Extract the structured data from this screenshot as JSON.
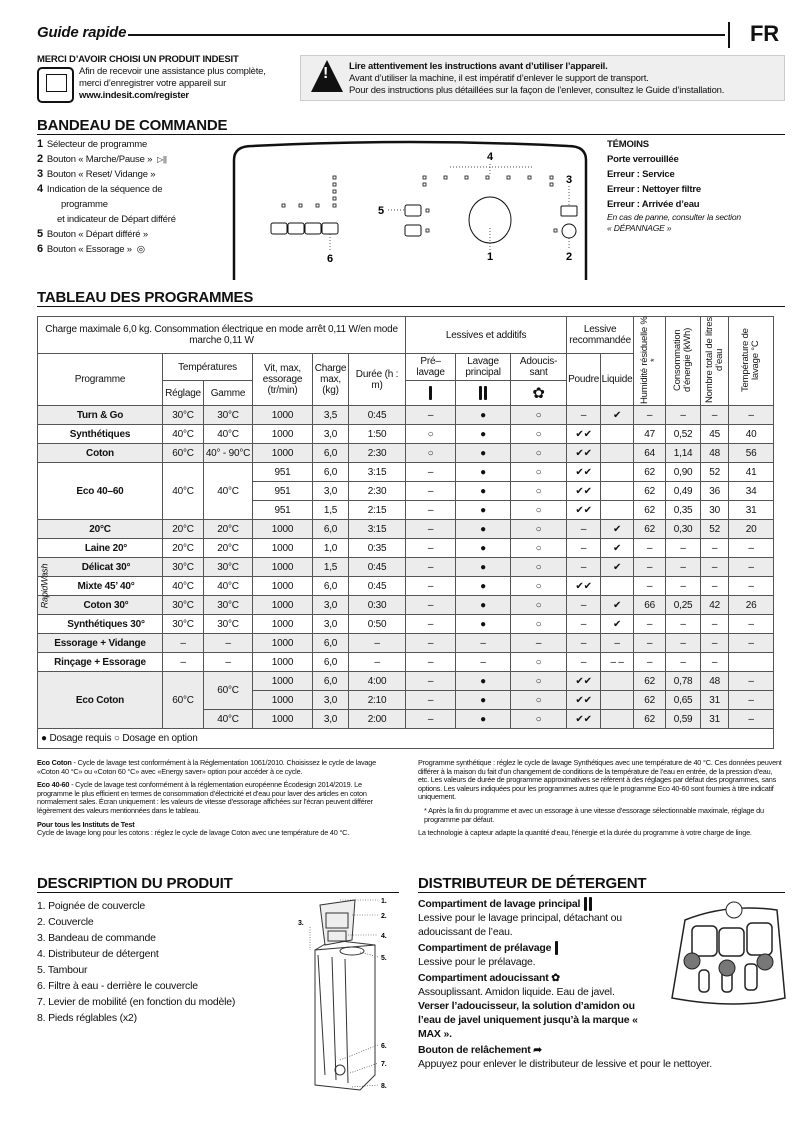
{
  "header": {
    "title": "Guide rapide",
    "lang": "FR"
  },
  "register": {
    "heading": "MERCI D’AVOIR CHOISI UN PRODUIT INDESIT",
    "line1": "Afin de recevoir une assistance plus complète,",
    "line2": "merci d’enregistrer votre appareil sur",
    "url": "www.indesit.com/register",
    "icon": "computer-icon"
  },
  "warning": {
    "bold": "Lire attentivement les instructions avant d’utiliser l’appareil.",
    "line1": "Avant d’utiliser la machine, il est impératif d’enlever le support de transport.",
    "line2": "Pour des instructions plus détaillées sur la façon de l’enlever, consultez le Guide d’installation.",
    "icon": "warning-icon"
  },
  "control": {
    "heading": "BANDEAU DE COMMANDE",
    "items": [
      {
        "n": "1",
        "label": "Sélecteur de programme"
      },
      {
        "n": "2",
        "label": "Bouton « Marche/Pause »",
        "icon": "play-pause-icon",
        "glyph": "▷||"
      },
      {
        "n": "3",
        "label": "Bouton « Reset/ Vidange »"
      },
      {
        "n": "4",
        "label": "Indication de la séquence de",
        "line2": "programme",
        "line3": "et indicateur de Départ différé"
      },
      {
        "n": "5",
        "label": "Bouton « Départ différé »"
      },
      {
        "n": "6",
        "label": "Bouton « Essorage »",
        "icon": "spin-icon",
        "glyph": "◎"
      }
    ],
    "panel_labels": {
      "l1": "1",
      "l2": "2",
      "l3": "3",
      "l4": "4",
      "l5": "5",
      "l6": "6"
    },
    "temoins": {
      "heading": "TÉMOINS",
      "items": [
        "Porte verrouillée",
        "Erreur : Service",
        "Erreur : Nettoyer filtre",
        "Erreur : Arrivée d’eau"
      ],
      "note1": "En cas de panne, consulter la section",
      "note2": "« DÉPANNAGE »"
    }
  },
  "programs": {
    "heading": "TABLEAU DES PROGRAMMES",
    "header": {
      "caption": "Charge maximale 6,0 kg. Consommation électrique en mode arrêt 0,11 W/en mode marche 0,11 W",
      "lessives": "Lessives et additifs",
      "recommandee": "Lessive recommandée",
      "programme": "Programme",
      "temperatures": "Températures",
      "reglage": "Réglage",
      "gamme": "Gamme",
      "vitesse": "Vit, max, essorage (tr/min)",
      "charge": "Charge max, (kg)",
      "duree": "Durée (h : m)",
      "prelavage": "Pré– lavage",
      "lavage": "Lavage principal",
      "adoucissant": "Adoucis- sant",
      "poudre": "Poudre",
      "liquide": "Liquide",
      "humidite": "Humidité résiduelle % *",
      "energie": "Consommation d’énergie (kWh)",
      "litres": "Nombre total de litres d’eau",
      "temperature": "Température de lavage °C"
    },
    "rapid_label": "RapidWash",
    "rows": [
      {
        "name": "Turn & Go",
        "variants": [
          [
            "30°C",
            "30°C",
            "1000",
            "3,5",
            "0:45",
            "–",
            "●",
            "○",
            "–",
            "✔",
            "–",
            "–",
            "–",
            "–"
          ]
        ]
      },
      {
        "name": "Synthétiques",
        "variants": [
          [
            "40°C",
            "40°C",
            "1000",
            "3,0",
            "1:50",
            "○",
            "●",
            "○",
            "✔✔",
            "",
            "47",
            "0,52",
            "45",
            "40"
          ]
        ]
      },
      {
        "name": "Coton",
        "variants": [
          [
            "60°C",
            "40° - 90°C",
            "1000",
            "6,0",
            "2:30",
            "○",
            "●",
            "○",
            "✔✔",
            "",
            "64",
            "1,14",
            "48",
            "56"
          ]
        ]
      },
      {
        "name": "Eco 40–60",
        "variants": [
          [
            "40°C",
            "40°C",
            "951",
            "6,0",
            "3:15",
            "–",
            "●",
            "○",
            "✔✔",
            "",
            "62",
            "0,90",
            "52",
            "41"
          ],
          [
            "40°C",
            "40°C",
            "951",
            "3,0",
            "2:30",
            "–",
            "●",
            "○",
            "✔✔",
            "",
            "62",
            "0,49",
            "36",
            "34"
          ],
          [
            "40°C",
            "40°C",
            "951",
            "1,5",
            "2:15",
            "–",
            "●",
            "○",
            "✔✔",
            "",
            "62",
            "0,35",
            "30",
            "31"
          ]
        ]
      },
      {
        "name": "20°C",
        "variants": [
          [
            "20°C",
            "20°C",
            "1000",
            "6,0",
            "3:15",
            "–",
            "●",
            "○",
            "–",
            "✔",
            "62",
            "0,30",
            "52",
            "20"
          ]
        ]
      },
      {
        "name": "Laine 20°",
        "rapid": true,
        "variants": [
          [
            "20°C",
            "20°C",
            "1000",
            "1,0",
            "0:35",
            "–",
            "●",
            "○",
            "–",
            "✔",
            "–",
            "–",
            "–",
            "–"
          ]
        ]
      },
      {
        "name": "Délicat 30°",
        "rapid": true,
        "variants": [
          [
            "30°C",
            "30°C",
            "1000",
            "1,5",
            "0:45",
            "–",
            "●",
            "○",
            "–",
            "✔",
            "–",
            "–",
            "–",
            "–"
          ]
        ]
      },
      {
        "name": "Mixte 45’ 40°",
        "rapid": true,
        "variants": [
          [
            "40°C",
            "40°C",
            "1000",
            "6,0",
            "0:45",
            "–",
            "●",
            "○",
            "✔✔",
            "",
            "–",
            "–",
            "–",
            "–"
          ]
        ]
      },
      {
        "name": "Coton 30°",
        "rapid": true,
        "variants": [
          [
            "30°C",
            "30°C",
            "1000",
            "3,0",
            "0:30",
            "–",
            "●",
            "○",
            "–",
            "✔",
            "66",
            "0,25",
            "42",
            "26"
          ]
        ]
      },
      {
        "name": "Synthétiques 30°",
        "rapid": true,
        "variants": [
          [
            "30°C",
            "30°C",
            "1000",
            "3,0",
            "0:50",
            "–",
            "●",
            "○",
            "–",
            "✔",
            "–",
            "–",
            "–",
            "–"
          ]
        ]
      },
      {
        "name": "Essorage + Vidange",
        "variants": [
          [
            "–",
            "–",
            "1000",
            "6,0",
            "–",
            "–",
            "–",
            "–",
            "–",
            "–",
            "–",
            "–",
            "–",
            "–"
          ]
        ]
      },
      {
        "name": "Rinçage + Essorage",
        "variants": [
          [
            "–",
            "–",
            "1000",
            "6,0",
            "–",
            "–",
            "–",
            "○",
            "–",
            "– –",
            "–",
            "–",
            "–",
            ""
          ]
        ]
      },
      {
        "name": "Eco Coton",
        "variants": [
          [
            "60°C",
            "60°C",
            "1000",
            "6,0",
            "4:00",
            "–",
            "●",
            "○",
            "✔✔",
            "",
            "62",
            "0,78",
            "48",
            "–"
          ],
          [
            "60°C",
            "60°C",
            "1000",
            "3,0",
            "2:10",
            "–",
            "●",
            "○",
            "✔✔",
            "",
            "62",
            "0,65",
            "31",
            "–"
          ],
          [
            "60°C",
            "40°C",
            "1000",
            "3,0",
            "2:00",
            "–",
            "●",
            "○",
            "✔✔",
            "",
            "62",
            "0,59",
            "31",
            "–"
          ]
        ]
      }
    ],
    "legend": {
      "required": "Dosage requis",
      "optional": "Dosage en option",
      "required_symbol": "●",
      "optional_symbol": "○"
    }
  },
  "notes": {
    "left": [
      {
        "bold": "Eco Coton",
        "text": " - Cycle de lavage test conformément à la Réglementation 1061/2010. Choisissez le cycle de lavage «Coton 40 °C» ou «Coton 60 °C» avec «Energy saver» option pour accéder à ce cycle."
      },
      {
        "bold": "Eco 40-60",
        "text": " - Cycle de lavage test conformément à la réglementation européenne Écodesign 2014/2019. Le programme le plus efficient en termes de consommation d’électricité et d’eau pour laver des articles en coton normalement sales. Écran uniquement : les valeurs de vitesse d’essorage affichées sur l’écran peuvent différer légèrement des valeurs mentionnées dans le tableau."
      },
      {
        "bold": "Pour tous les Instituts de Test",
        "text": "Cycle de lavage long pour les cotons : réglez le cycle de lavage Coton avec une température de 40 °C."
      }
    ],
    "right": [
      "Programme synthétique : réglez le cycle de lavage Synthétiques avec une température de 40 °C. Ces données peuvent différer à la maison du fait d’un changement de conditions de la température de l’eau en entrée, de la pression d’eau, etc. Les valeurs de durée de programme approximatives se réfèrent à des réglages par défaut des programmes, sans options. Les valeurs indiquées pour les programmes autres que le programme Eco 40-60 sont fournies à titre indicatif uniquement.",
      "* Après la fin du programme et avec un essorage à une vitesse d’essorage sélectionnable maximale, réglage du programme par défaut.",
      "La technologie à capteur adapte la quantité d’eau, l’énergie et la durée du programme à votre charge de linge."
    ]
  },
  "description": {
    "heading": "DESCRIPTION DU PRODUIT",
    "items": [
      "1. Poignée de couvercle",
      "2. Couvercle",
      "3. Bandeau de commande",
      "4. Distributeur de détergent",
      "5. Tambour",
      "6. Filtre à eau - derrière le couvercle",
      "7. Levier de mobilité (en fonction du modèle)",
      "8. Pieds réglables (x2)"
    ],
    "callouts": [
      "1.",
      "2.",
      "3.",
      "4.",
      "5.",
      "6.",
      "7.",
      "8."
    ]
  },
  "dispenser": {
    "heading": "DISTRIBUTEUR DE DÉTERGENT",
    "main_title": "Compartiment de lavage principal",
    "main_text": "Lessive pour le lavage principal, détachant ou adoucissant de l’eau.",
    "pre_title": "Compartiment de prélavage",
    "pre_text": "Lessive pour le prélavage.",
    "soft_title": "Compartiment adoucissant",
    "soft_text": "Assouplissant. Amidon liquide. Eau de javel.",
    "soft_bold": "Verser l’adoucisseur, la solution d’amidon ou l’eau de javel uniquement jusqu’à la marque « MAX ».",
    "release_title": "Bouton de relâchement",
    "release_text": "Appuyez pour enlever le distributeur de lessive et pour le nettoyer.",
    "icons": [
      "double-bar-icon",
      "single-bar-icon",
      "flower-icon",
      "release-arrow-icon"
    ]
  }
}
